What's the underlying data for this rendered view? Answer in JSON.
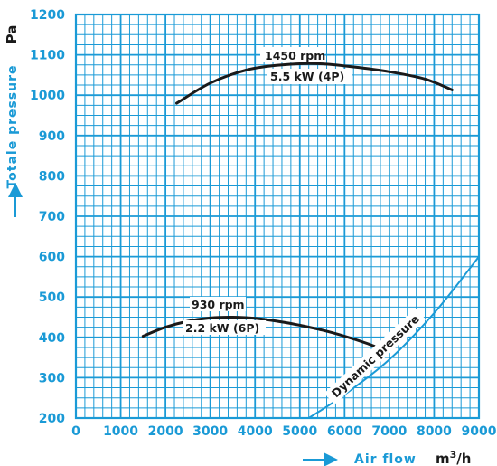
{
  "chart_data": {
    "type": "line",
    "xlabel": "Air flow",
    "xunit_main": "m",
    "xunit_sup": "3",
    "xunit_tail": "/h",
    "ylabel": "Totale pressure",
    "yunit": "Pa",
    "xlim": [
      0,
      9000
    ],
    "ylim": [
      200,
      1200
    ],
    "xticks": [
      0,
      1000,
      2000,
      3000,
      4000,
      5000,
      6000,
      7000,
      8000,
      9000
    ],
    "yticks": [
      200,
      300,
      400,
      500,
      600,
      700,
      800,
      900,
      1000,
      1100,
      1200
    ],
    "grid": true,
    "colors": {
      "grid": "#1a9ad6",
      "curve": "#1a1a1a",
      "dynamic": "#1a9ad6"
    },
    "series": [
      {
        "name": "1450 rpm",
        "sublabel": "5.5 kW (4P)",
        "x": [
          2250,
          3000,
          3800,
          4600,
          5400,
          6200,
          7000,
          7800,
          8400
        ],
        "y": [
          980,
          1030,
          1062,
          1075,
          1078,
          1070,
          1058,
          1040,
          1013
        ]
      },
      {
        "name": "930 rpm",
        "sublabel": "2.2 kW (6P)",
        "x": [
          1500,
          2000,
          2500,
          3000,
          3500,
          4000,
          4500,
          5000,
          5500,
          6000,
          6500,
          6800
        ],
        "y": [
          403,
          425,
          440,
          448,
          450,
          447,
          440,
          430,
          418,
          403,
          385,
          372
        ]
      },
      {
        "name": "Dynamic pressure",
        "x": [
          5200,
          6000,
          7000,
          8000,
          9000
        ],
        "y": [
          200,
          258,
          345,
          460,
          600
        ]
      }
    ]
  }
}
